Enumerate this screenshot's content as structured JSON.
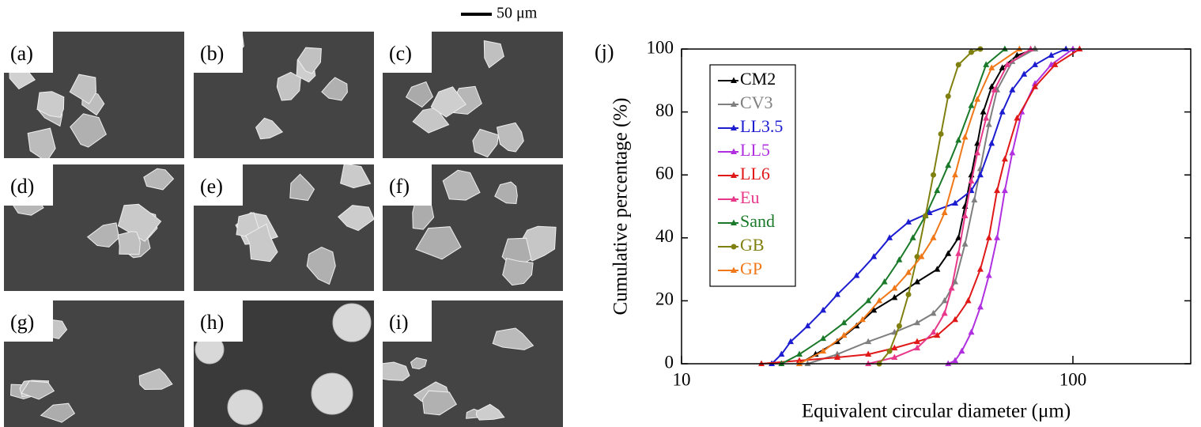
{
  "panels": {
    "labels": [
      "(a)",
      "(b)",
      "(c)",
      "(d)",
      "(e)",
      "(f)",
      "(g)",
      "(h)",
      "(i)"
    ],
    "scale_bar": "50 μm"
  },
  "chart_data": {
    "type": "line",
    "label": "(j)",
    "x_label": "Equivalent circular diameter (μm)",
    "y_label": "Cumulative percentage (%)",
    "log_x": true,
    "xlim": [
      10,
      200
    ],
    "xticks": [
      10,
      100
    ],
    "ylim": [
      0,
      100
    ],
    "yticks": [
      0,
      20,
      40,
      60,
      80,
      100
    ],
    "legend": "top-left",
    "series": [
      {
        "name": "CM2",
        "color": "#000000",
        "marker": "triangle",
        "x": [
          20,
          22,
          25,
          28,
          31,
          35,
          40,
          45,
          48,
          51,
          53,
          55,
          57,
          59,
          62,
          66,
          72,
          80
        ],
        "values": [
          0,
          3,
          7,
          12,
          17,
          21,
          26,
          30,
          35,
          40,
          50,
          60,
          70,
          80,
          88,
          94,
          98,
          100
        ]
      },
      {
        "name": "CV3",
        "color": "#7f7f7f",
        "marker": "triangle",
        "x": [
          21,
          25,
          30,
          35,
          40,
          44,
          47,
          50,
          53,
          56,
          58,
          61,
          64,
          70,
          80
        ],
        "values": [
          0,
          3,
          7,
          10,
          13,
          16,
          20,
          26,
          38,
          52,
          62,
          76,
          87,
          96,
          100
        ]
      },
      {
        "name": "LL3.5",
        "color": "#1c1cd0",
        "marker": "triangle",
        "x": [
          17,
          18,
          19,
          21,
          23,
          25,
          28,
          31,
          34,
          38,
          43,
          50,
          55,
          58,
          62,
          66,
          70,
          75,
          80,
          88,
          96
        ],
        "values": [
          0,
          3,
          7,
          12,
          17,
          22,
          28,
          34,
          40,
          45,
          48,
          51,
          55,
          60,
          70,
          80,
          87,
          92,
          95,
          98,
          100
        ]
      },
      {
        "name": "LL5",
        "color": "#b030e0",
        "marker": "triangle",
        "x": [
          48,
          50,
          52,
          55,
          58,
          61,
          64,
          67,
          70,
          74,
          80,
          88,
          100
        ],
        "values": [
          0,
          1,
          4,
          10,
          18,
          28,
          40,
          55,
          67,
          80,
          89,
          95,
          100
        ]
      },
      {
        "name": "LL6",
        "color": "#e01818",
        "marker": "triangle",
        "x": [
          16,
          20,
          25,
          30,
          35,
          40,
          45,
          50,
          54,
          58,
          61,
          64,
          67,
          72,
          80,
          90,
          104
        ],
        "values": [
          0,
          1,
          2,
          3,
          5,
          7,
          9,
          14,
          20,
          30,
          40,
          55,
          65,
          78,
          88,
          95,
          100
        ]
      },
      {
        "name": "Eu",
        "color": "#e8388a",
        "marker": "triangle",
        "x": [
          30,
          35,
          40,
          44,
          47,
          49,
          51,
          53,
          55,
          57,
          60,
          63,
          68,
          78
        ],
        "values": [
          0,
          2,
          5,
          10,
          16,
          24,
          35,
          47,
          58,
          67,
          78,
          87,
          95,
          100
        ]
      },
      {
        "name": "Sand",
        "color": "#1a7a2a",
        "marker": "triangle",
        "x": [
          18,
          20,
          23,
          26,
          30,
          33,
          36,
          39,
          42,
          45,
          48,
          51,
          55,
          60,
          67
        ],
        "values": [
          0,
          3,
          8,
          13,
          20,
          26,
          33,
          40,
          47,
          55,
          63,
          71,
          82,
          95,
          100
        ]
      },
      {
        "name": "GB",
        "color": "#808010",
        "marker": "circle",
        "x": [
          32,
          34,
          36,
          38,
          40,
          42,
          44,
          46,
          48,
          51,
          55,
          58
        ],
        "values": [
          0,
          4,
          12,
          22,
          34,
          47,
          60,
          73,
          85,
          95,
          99,
          100
        ]
      },
      {
        "name": "GP",
        "color": "#f07818",
        "marker": "triangle",
        "x": [
          20,
          23,
          26,
          29,
          32,
          35,
          38,
          41,
          44,
          47,
          50,
          53,
          57,
          62,
          73
        ],
        "values": [
          0,
          4,
          9,
          14,
          20,
          24,
          29,
          34,
          40,
          48,
          60,
          72,
          84,
          94,
          100
        ]
      }
    ]
  }
}
